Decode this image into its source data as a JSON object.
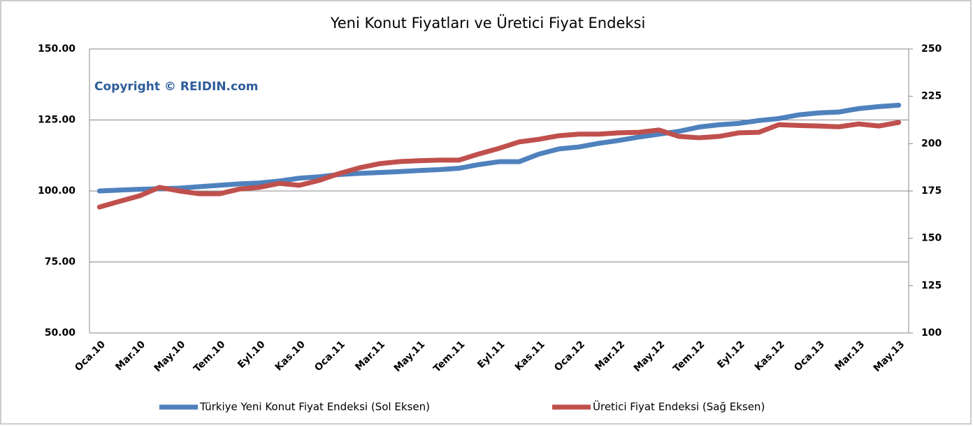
{
  "chart_data": {
    "type": "line",
    "title": "Yeni Konut Fiyatları ve Üretici Fiyat Endeksi",
    "annotation": "Copyright © REIDIN.com",
    "categories": [
      "Oca.10",
      null,
      "Mar.10",
      null,
      "May.10",
      null,
      "Tem.10",
      null,
      "Eyl.10",
      null,
      "Kas.10",
      null,
      "Oca.11",
      null,
      "Mar.11",
      null,
      "May.11",
      null,
      "Tem.11",
      null,
      "Eyl.11",
      null,
      "Kas.11",
      null,
      "Oca.12",
      null,
      "Mar.12",
      null,
      "May.12",
      null,
      "Tem.12",
      null,
      "Eyl.12",
      null,
      "Kas.12",
      null,
      "Oca.13",
      null,
      "Mar.13",
      null,
      "May.13"
    ],
    "series": [
      {
        "name": "Türkiye Yeni Konut Fiyat Endeksi (Sol Eksen)",
        "color": "#4f81bd",
        "axis": "y",
        "values": [
          100,
          100.3,
          100.6,
          100.8,
          101,
          101.5,
          102,
          102.5,
          102.8,
          103.5,
          104.5,
          105,
          105.8,
          106.2,
          106.5,
          106.8,
          107.2,
          107.5,
          108,
          109.3,
          110.3,
          110.3,
          113,
          114.8,
          115.5,
          116.8,
          117.8,
          119,
          120,
          121,
          122.5,
          123.3,
          123.8,
          124.8,
          125.5,
          126.8,
          127.5,
          127.8,
          129,
          129.7,
          130.2
        ]
      },
      {
        "name": "Üretici Fiyat Endeksi (Sağ Eksen)",
        "color": "#c0504d",
        "axis": "y2",
        "values": [
          166.5,
          169.5,
          172.4,
          176.9,
          175,
          173.5,
          173.5,
          176,
          176.9,
          179,
          178,
          180.6,
          184.2,
          187.2,
          189.4,
          190.5,
          191,
          191.3,
          191.3,
          194.6,
          197.5,
          200.9,
          202.3,
          204.2,
          205,
          205,
          205.7,
          206,
          207.2,
          203.8,
          203.1,
          203.8,
          205.7,
          206,
          210,
          209.6,
          209.3,
          208.9,
          210.4,
          209.3,
          211.2
        ]
      }
    ],
    "ylim": [
      50,
      150
    ],
    "yticks": [
      {
        "value": 50,
        "label": "50.00"
      },
      {
        "value": 75,
        "label": "75.00"
      },
      {
        "value": 100,
        "label": "100.00"
      },
      {
        "value": 125,
        "label": "125.00"
      },
      {
        "value": 150,
        "label": "150.00"
      }
    ],
    "y2lim": [
      100,
      250
    ],
    "y2ticks": [
      100,
      125,
      150,
      175,
      200,
      225,
      250
    ],
    "grid": true,
    "legend": "bottom"
  }
}
